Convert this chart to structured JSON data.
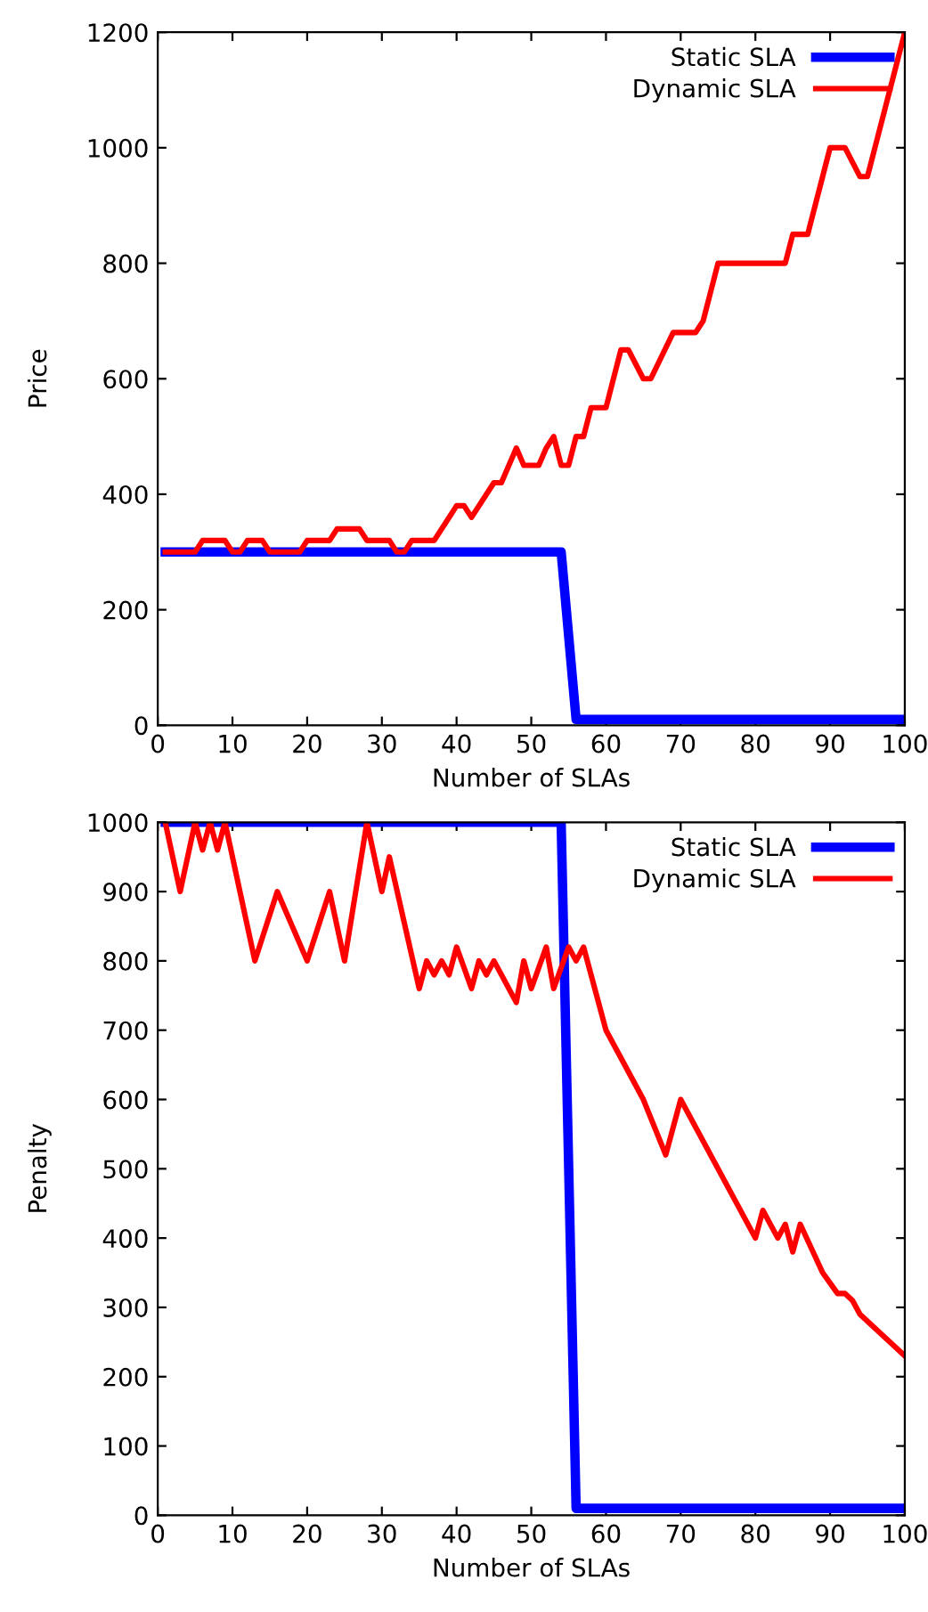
{
  "chart_data": [
    {
      "type": "line",
      "xlabel": "Number of SLAs",
      "ylabel": "Price",
      "xlim": [
        0,
        100
      ],
      "xticks": [
        0,
        10,
        20,
        30,
        40,
        50,
        60,
        70,
        80,
        90,
        100
      ],
      "ylim": [
        0,
        1200
      ],
      "yticks": [
        0,
        200,
        400,
        600,
        800,
        1000,
        1200
      ],
      "legend": "top right",
      "grid": false,
      "series": [
        {
          "name": "Static SLA",
          "color": "#0000ff",
          "x": [
            1,
            54,
            56,
            100
          ],
          "values": [
            300,
            300,
            10,
            10
          ]
        },
        {
          "name": "Dynamic SLA",
          "color": "#ff0000",
          "x": [
            1,
            5,
            6,
            9,
            10,
            11,
            12,
            14,
            15,
            19,
            20,
            23,
            24,
            27,
            28,
            31,
            32,
            33,
            34,
            37,
            40,
            41,
            42,
            45,
            46,
            48,
            49,
            51,
            52,
            53,
            54,
            55,
            56,
            57,
            58,
            60,
            62,
            63,
            65,
            66,
            69,
            72,
            73,
            75,
            84,
            85,
            87,
            90,
            92,
            94,
            95,
            100
          ],
          "values": [
            300,
            300,
            320,
            320,
            300,
            300,
            320,
            320,
            300,
            300,
            320,
            320,
            340,
            340,
            320,
            320,
            300,
            300,
            320,
            320,
            380,
            380,
            360,
            420,
            420,
            480,
            450,
            450,
            480,
            500,
            450,
            450,
            500,
            500,
            550,
            550,
            650,
            650,
            600,
            600,
            680,
            680,
            700,
            800,
            800,
            850,
            850,
            1000,
            1000,
            950,
            950,
            1200
          ]
        }
      ]
    },
    {
      "type": "line",
      "xlabel": "Number of SLAs",
      "ylabel": "Penalty",
      "xlim": [
        0,
        100
      ],
      "xticks": [
        0,
        10,
        20,
        30,
        40,
        50,
        60,
        70,
        80,
        90,
        100
      ],
      "ylim": [
        0,
        1000
      ],
      "yticks": [
        0,
        100,
        200,
        300,
        400,
        500,
        600,
        700,
        800,
        900,
        1000
      ],
      "legend": "top right",
      "grid": false,
      "series": [
        {
          "name": "Static SLA",
          "color": "#0000ff",
          "x": [
            1,
            54,
            56,
            100
          ],
          "values": [
            1000,
            1000,
            10,
            10
          ]
        },
        {
          "name": "Dynamic SLA",
          "color": "#ff0000",
          "x": [
            1,
            3,
            5,
            6,
            7,
            8,
            9,
            10,
            13,
            16,
            20,
            23,
            25,
            28,
            30,
            31,
            35,
            36,
            37,
            38,
            39,
            40,
            42,
            43,
            44,
            45,
            48,
            49,
            50,
            52,
            53,
            55,
            56,
            57,
            60,
            65,
            68,
            70,
            80,
            81,
            83,
            84,
            85,
            86,
            89,
            91,
            92,
            93,
            94,
            100
          ],
          "values": [
            1000,
            900,
            1000,
            960,
            1000,
            960,
            1000,
            950,
            800,
            900,
            800,
            900,
            800,
            1000,
            900,
            950,
            760,
            800,
            780,
            800,
            780,
            820,
            760,
            800,
            780,
            800,
            740,
            800,
            760,
            820,
            760,
            820,
            800,
            820,
            700,
            600,
            520,
            600,
            400,
            440,
            400,
            420,
            380,
            420,
            350,
            320,
            320,
            310,
            290,
            230
          ]
        }
      ]
    }
  ]
}
